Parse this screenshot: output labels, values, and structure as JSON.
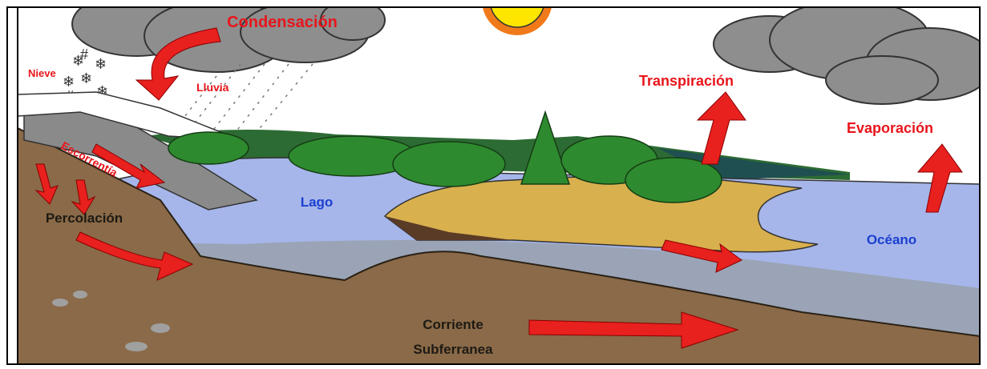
{
  "labels": {
    "condensation": "Condensación",
    "snow": "Nieve",
    "rain": "Lluvia",
    "transpiration": "Transpiración",
    "evaporation": "Evaporación",
    "runoff": "Escorrentía",
    "lake": "Lago",
    "percolation": "Percolación",
    "ocean": "Océano",
    "groundwater": [
      "Corriente",
      "Subferranea"
    ]
  }
}
